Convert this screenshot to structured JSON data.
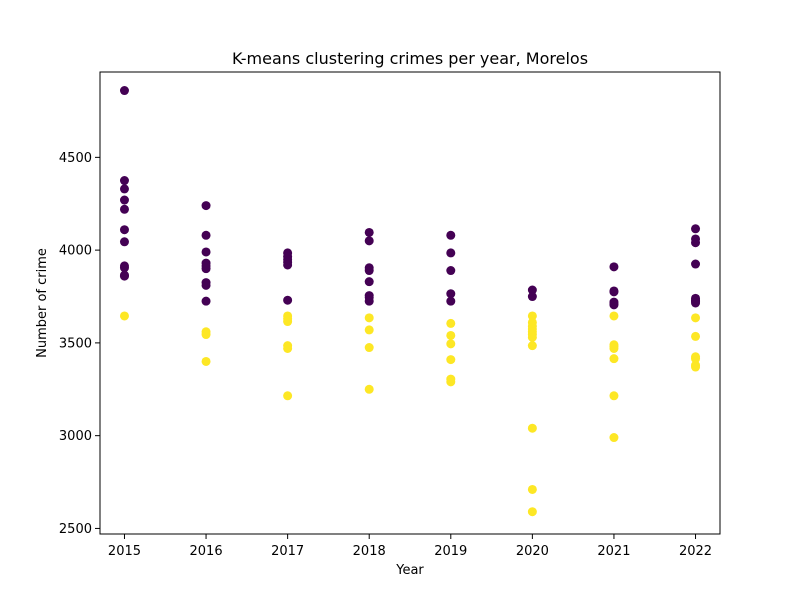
{
  "chart_data": {
    "type": "scatter",
    "title": "K-means clustering crimes per year, Morelos",
    "xlabel": "Year",
    "ylabel": "Number of crime",
    "xlim": [
      2014.7,
      2022.3
    ],
    "ylim": [
      2470,
      4960
    ],
    "x_ticks": [
      2015,
      2016,
      2017,
      2018,
      2019,
      2020,
      2021,
      2022
    ],
    "x_tick_labels": [
      "2015",
      "2016",
      "2017",
      "2018",
      "2019",
      "2020",
      "2021",
      "2022"
    ],
    "y_ticks": [
      2500,
      3000,
      3500,
      4000,
      4500
    ],
    "y_tick_labels": [
      "2500",
      "3000",
      "3500",
      "4000",
      "4500"
    ],
    "grid": false,
    "series": [
      {
        "color": "#440154",
        "points": [
          [
            2015,
            4860
          ],
          [
            2015,
            4375
          ],
          [
            2015,
            4330
          ],
          [
            2015,
            4270
          ],
          [
            2015,
            4220
          ],
          [
            2015,
            4110
          ],
          [
            2015,
            4045
          ],
          [
            2015,
            3915
          ],
          [
            2015,
            3905
          ],
          [
            2015,
            3865
          ],
          [
            2015,
            3860
          ],
          [
            2016,
            4240
          ],
          [
            2016,
            4080
          ],
          [
            2016,
            3990
          ],
          [
            2016,
            3930
          ],
          [
            2016,
            3915
          ],
          [
            2016,
            3900
          ],
          [
            2016,
            3825
          ],
          [
            2016,
            3810
          ],
          [
            2016,
            3725
          ],
          [
            2017,
            3985
          ],
          [
            2017,
            3965
          ],
          [
            2017,
            3950
          ],
          [
            2017,
            3935
          ],
          [
            2017,
            3920
          ],
          [
            2017,
            3730
          ],
          [
            2018,
            4095
          ],
          [
            2018,
            4050
          ],
          [
            2018,
            3905
          ],
          [
            2018,
            3890
          ],
          [
            2018,
            3830
          ],
          [
            2018,
            3755
          ],
          [
            2018,
            3745
          ],
          [
            2018,
            3725
          ],
          [
            2019,
            4080
          ],
          [
            2019,
            3985
          ],
          [
            2019,
            3890
          ],
          [
            2019,
            3765
          ],
          [
            2019,
            3725
          ],
          [
            2020,
            3785
          ],
          [
            2020,
            3750
          ],
          [
            2021,
            3910
          ],
          [
            2021,
            3780
          ],
          [
            2021,
            3775
          ],
          [
            2021,
            3720
          ],
          [
            2021,
            3710
          ],
          [
            2021,
            3705
          ],
          [
            2022,
            4115
          ],
          [
            2022,
            4060
          ],
          [
            2022,
            4040
          ],
          [
            2022,
            3925
          ],
          [
            2022,
            3740
          ],
          [
            2022,
            3730
          ],
          [
            2022,
            3725
          ],
          [
            2022,
            3715
          ]
        ]
      },
      {
        "color": "#fde725",
        "points": [
          [
            2015,
            3645
          ],
          [
            2016,
            3560
          ],
          [
            2016,
            3545
          ],
          [
            2016,
            3400
          ],
          [
            2017,
            3645
          ],
          [
            2017,
            3630
          ],
          [
            2017,
            3615
          ],
          [
            2017,
            3485
          ],
          [
            2017,
            3470
          ],
          [
            2017,
            3215
          ],
          [
            2018,
            3635
          ],
          [
            2018,
            3570
          ],
          [
            2018,
            3475
          ],
          [
            2018,
            3250
          ],
          [
            2019,
            3605
          ],
          [
            2019,
            3540
          ],
          [
            2019,
            3495
          ],
          [
            2019,
            3410
          ],
          [
            2019,
            3305
          ],
          [
            2019,
            3290
          ],
          [
            2020,
            3645
          ],
          [
            2020,
            3610
          ],
          [
            2020,
            3590
          ],
          [
            2020,
            3575
          ],
          [
            2020,
            3560
          ],
          [
            2020,
            3545
          ],
          [
            2020,
            3530
          ],
          [
            2020,
            3485
          ],
          [
            2020,
            3040
          ],
          [
            2020,
            2710
          ],
          [
            2020,
            2590
          ],
          [
            2021,
            3645
          ],
          [
            2021,
            3490
          ],
          [
            2021,
            3480
          ],
          [
            2021,
            3470
          ],
          [
            2021,
            3415
          ],
          [
            2021,
            3215
          ],
          [
            2021,
            2990
          ],
          [
            2022,
            3635
          ],
          [
            2022,
            3535
          ],
          [
            2022,
            3425
          ],
          [
            2022,
            3415
          ],
          [
            2022,
            3380
          ],
          [
            2022,
            3370
          ]
        ]
      }
    ]
  }
}
